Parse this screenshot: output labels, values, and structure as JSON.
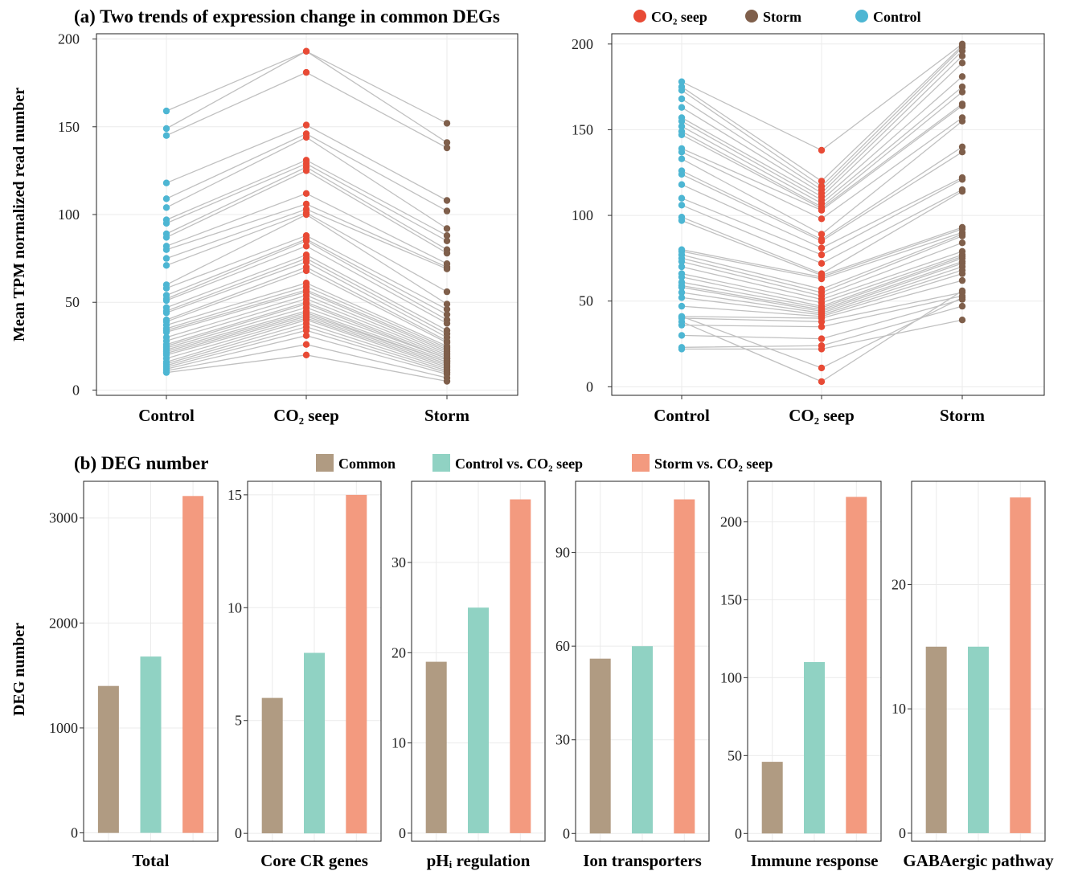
{
  "colors": {
    "co2": "#e84a35",
    "storm": "#7f5f4b",
    "control": "#4db6d3",
    "common": "#b09b82",
    "ctrl_vs_co2": "#90d2c3",
    "storm_vs_co2": "#f39a7f"
  },
  "panel_a": {
    "title": "(a) Two trends of expression change in common DEGs",
    "ylabel": "Mean TPM normalized read number",
    "legend": [
      {
        "label": "CO₂ seep",
        "color": "#e84a35"
      },
      {
        "label": "Storm",
        "color": "#7f5f4b"
      },
      {
        "label": "Control",
        "color": "#4db6d3"
      }
    ]
  },
  "panel_b": {
    "title": "(b) DEG number",
    "ylabel": "DEG number",
    "legend": [
      {
        "label": "Common",
        "color": "#b09b82"
      },
      {
        "label": "Control vs. CO₂ seep",
        "color": "#90d2c3"
      },
      {
        "label": "Storm vs. CO₂ seep",
        "color": "#f39a7f"
      }
    ]
  },
  "chart_data": [
    {
      "type": "line",
      "panel": "a-left",
      "categories": [
        "Control",
        "CO₂ seep",
        "Storm"
      ],
      "ylim": [
        -3,
        203
      ],
      "yticks": [
        0,
        50,
        100,
        150,
        200
      ],
      "grid": true,
      "lines": [
        [
          159,
          193,
          152
        ],
        [
          149,
          193,
          141
        ],
        [
          145,
          181,
          138
        ],
        [
          118,
          151,
          108
        ],
        [
          109,
          146,
          102
        ],
        [
          104,
          144,
          92
        ],
        [
          97,
          131,
          88
        ],
        [
          95,
          129,
          85
        ],
        [
          89,
          127,
          80
        ],
        [
          87,
          125,
          78
        ],
        [
          82,
          112,
          72
        ],
        [
          80,
          106,
          70
        ],
        [
          75,
          103,
          69
        ],
        [
          71,
          101,
          56
        ],
        [
          60,
          100,
          49
        ],
        [
          58,
          88,
          46
        ],
        [
          54,
          86,
          43
        ],
        [
          52,
          85,
          40
        ],
        [
          51,
          82,
          38
        ],
        [
          47,
          77,
          34
        ],
        [
          45,
          75,
          32
        ],
        [
          44,
          73,
          30
        ],
        [
          40,
          70,
          28
        ],
        [
          39,
          68,
          27
        ],
        [
          37,
          61,
          25
        ],
        [
          35,
          59,
          24
        ],
        [
          34,
          57,
          23
        ],
        [
          33,
          56,
          22
        ],
        [
          30,
          54,
          21
        ],
        [
          28,
          52,
          20
        ],
        [
          26,
          50,
          19
        ],
        [
          25,
          49,
          18
        ],
        [
          24,
          47,
          18
        ],
        [
          23,
          45,
          17
        ],
        [
          22,
          44,
          16
        ],
        [
          21,
          43,
          16
        ],
        [
          20,
          42,
          15
        ],
        [
          18,
          41,
          14
        ],
        [
          16,
          40,
          13
        ],
        [
          15,
          38,
          12
        ],
        [
          14,
          36,
          11
        ],
        [
          13,
          34,
          10
        ],
        [
          12,
          31,
          9
        ],
        [
          11,
          26,
          7
        ],
        [
          10,
          20,
          5
        ]
      ]
    },
    {
      "type": "line",
      "panel": "a-right",
      "categories": [
        "Control",
        "CO₂ seep",
        "Storm"
      ],
      "ylim": [
        -5,
        206
      ],
      "yticks": [
        0,
        50,
        100,
        150,
        200
      ],
      "grid": true,
      "lines": [
        [
          178,
          138,
          200
        ],
        [
          175,
          120,
          199
        ],
        [
          173,
          117,
          198
        ],
        [
          168,
          115,
          196
        ],
        [
          163,
          113,
          193
        ],
        [
          157,
          111,
          189
        ],
        [
          155,
          109,
          181
        ],
        [
          152,
          107,
          175
        ],
        [
          149,
          105,
          172
        ],
        [
          147,
          104,
          165
        ],
        [
          139,
          103,
          164
        ],
        [
          137,
          98,
          157
        ],
        [
          133,
          89,
          155
        ],
        [
          126,
          86,
          140
        ],
        [
          124,
          85,
          137
        ],
        [
          118,
          81,
          122
        ],
        [
          110,
          77,
          121
        ],
        [
          106,
          72,
          115
        ],
        [
          99,
          66,
          114
        ],
        [
          97,
          65,
          93
        ],
        [
          80,
          64,
          92
        ],
        [
          79,
          63,
          90
        ],
        [
          77,
          57,
          89
        ],
        [
          75,
          55,
          88
        ],
        [
          73,
          53,
          84
        ],
        [
          70,
          51,
          79
        ],
        [
          66,
          49,
          77
        ],
        [
          64,
          47,
          76
        ],
        [
          61,
          46,
          75
        ],
        [
          59,
          45,
          73
        ],
        [
          58,
          44,
          72
        ],
        [
          55,
          43,
          70
        ],
        [
          52,
          42,
          68
        ],
        [
          47,
          41,
          66
        ],
        [
          41,
          40,
          62
        ],
        [
          40,
          38,
          55
        ],
        [
          36,
          35,
          53
        ],
        [
          30,
          28,
          51
        ],
        [
          23,
          24,
          47
        ],
        [
          22,
          22,
          39
        ],
        [
          41,
          11,
          52
        ],
        [
          38,
          3,
          56
        ]
      ]
    },
    {
      "type": "bar",
      "panel": "b",
      "category": "Total",
      "ylim": [
        -80,
        3350
      ],
      "yticks": [
        0,
        1000,
        2000,
        3000
      ],
      "bars": [
        {
          "series": "Common",
          "value": 1400
        },
        {
          "series": "Control vs. CO₂ seep",
          "value": 1680
        },
        {
          "series": "Storm vs. CO₂ seep",
          "value": 3210
        }
      ]
    },
    {
      "type": "bar",
      "panel": "b",
      "category": "Core CR genes",
      "ylim": [
        -0.35,
        15.6
      ],
      "yticks": [
        0,
        5,
        10,
        15
      ],
      "bars": [
        {
          "series": "Common",
          "value": 6
        },
        {
          "series": "Control vs. CO₂ seep",
          "value": 8
        },
        {
          "series": "Storm vs. CO₂ seep",
          "value": 15
        }
      ]
    },
    {
      "type": "bar",
      "panel": "b",
      "category": "pHᵢ regulation",
      "ylim": [
        -0.9,
        39.0
      ],
      "yticks": [
        0,
        10,
        20,
        30
      ],
      "bars": [
        {
          "series": "Common",
          "value": 19
        },
        {
          "series": "Control vs. CO₂ seep",
          "value": 25
        },
        {
          "series": "Storm vs. CO₂ seep",
          "value": 37
        }
      ]
    },
    {
      "type": "bar",
      "panel": "b",
      "category": "Ion transporters",
      "ylim": [
        -2.5,
        112.8
      ],
      "yticks": [
        0,
        30,
        60,
        90
      ],
      "bars": [
        {
          "series": "Common",
          "value": 56
        },
        {
          "series": "Control vs. CO₂ seep",
          "value": 60
        },
        {
          "series": "Storm vs. CO₂ seep",
          "value": 107
        }
      ]
    },
    {
      "type": "bar",
      "panel": "b",
      "category": "Immune response",
      "ylim": [
        -5,
        226
      ],
      "yticks": [
        0,
        50,
        100,
        150,
        200
      ],
      "bars": [
        {
          "series": "Common",
          "value": 46
        },
        {
          "series": "Control vs. CO₂ seep",
          "value": 110
        },
        {
          "series": "Storm vs. CO₂ seep",
          "value": 216
        }
      ]
    },
    {
      "type": "bar",
      "panel": "b",
      "category": "GABAergic pathway",
      "ylim": [
        -0.65,
        28.3
      ],
      "yticks": [
        0,
        10,
        20
      ],
      "bars": [
        {
          "series": "Common",
          "value": 15
        },
        {
          "series": "Control vs. CO₂ seep",
          "value": 15
        },
        {
          "series": "Storm vs. CO₂ seep",
          "value": 27
        }
      ]
    }
  ]
}
